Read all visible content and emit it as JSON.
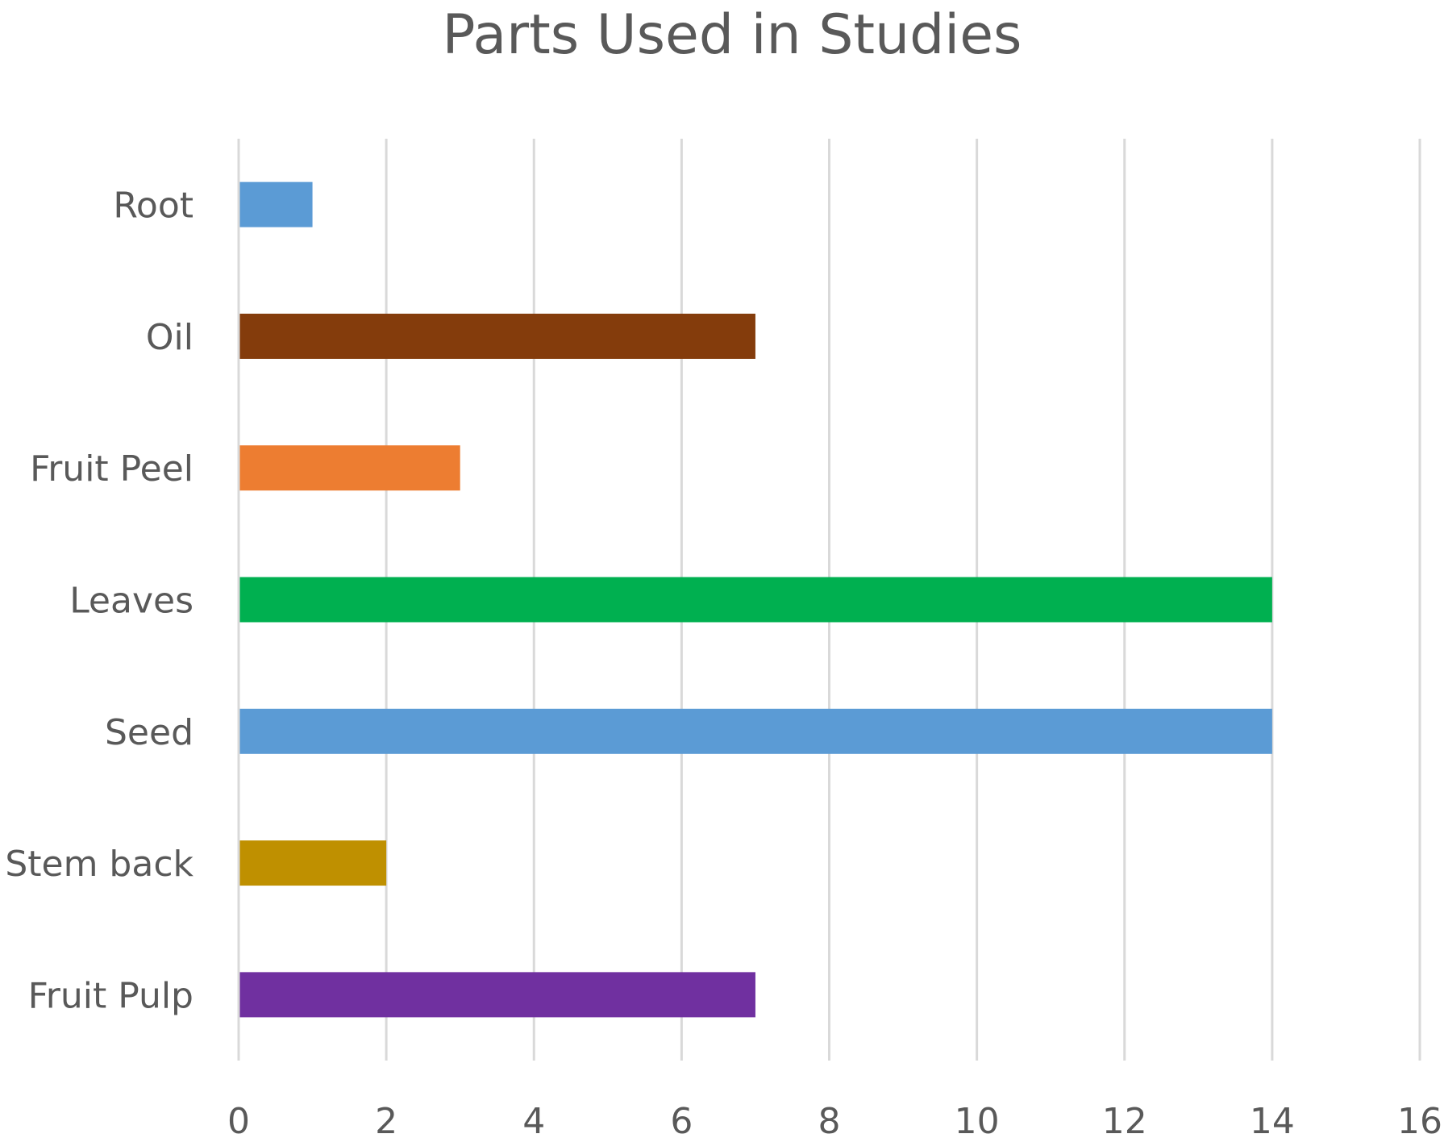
{
  "chart_data": {
    "type": "bar",
    "orientation": "horizontal",
    "title": "Parts Used in Studies",
    "xlabel": "",
    "ylabel": "",
    "categories": [
      "Fruit Pulp",
      "Stem back",
      "Seed",
      "Leaves",
      "Fruit Peel",
      "Oil",
      "Root"
    ],
    "values": [
      7,
      2,
      14,
      14,
      3,
      7,
      1
    ],
    "colors": [
      "#7030a0",
      "#bf9000",
      "#5b9bd5",
      "#00b050",
      "#ed7d31",
      "#843c0c",
      "#5b9bd5"
    ],
    "xlim": [
      0,
      16
    ],
    "xticks": [
      0,
      2,
      4,
      6,
      8,
      10,
      12,
      14,
      16
    ],
    "grid": true,
    "legend": "none"
  }
}
